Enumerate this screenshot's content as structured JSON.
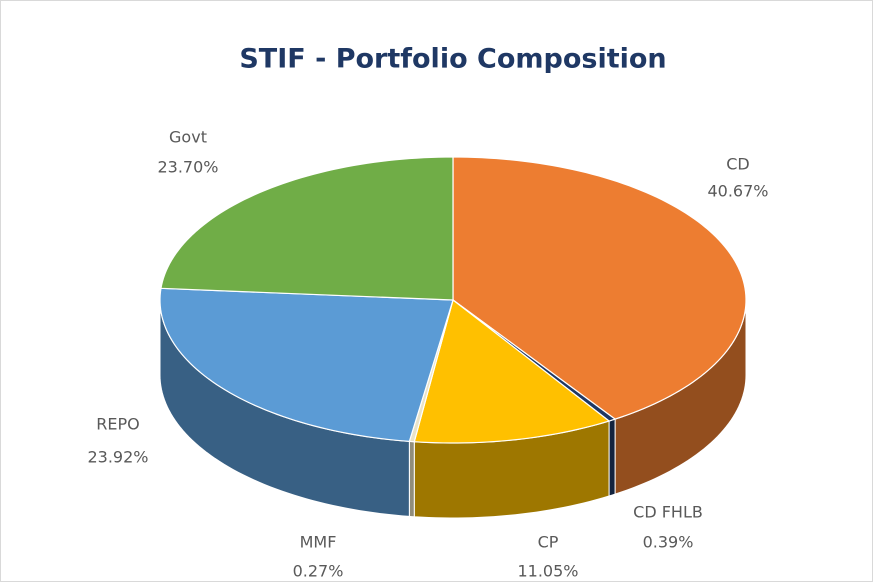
{
  "chart_data": {
    "type": "pie3d",
    "title": "STIF - Portfolio Composition",
    "categories": [
      "CD",
      "CD FHLB",
      "CP",
      "MMF",
      "REPO",
      "Govt"
    ],
    "values": [
      40.67,
      0.39,
      11.05,
      0.27,
      23.92,
      23.7
    ],
    "value_labels": [
      "40.67%",
      "0.39%",
      "11.05%",
      "0.27%",
      "23.92%",
      "23.70%"
    ],
    "colors": [
      "#ed7d31",
      "#1f3864",
      "#ffc000",
      "#eae3c8",
      "#5b9bd5",
      "#70ad47"
    ]
  }
}
